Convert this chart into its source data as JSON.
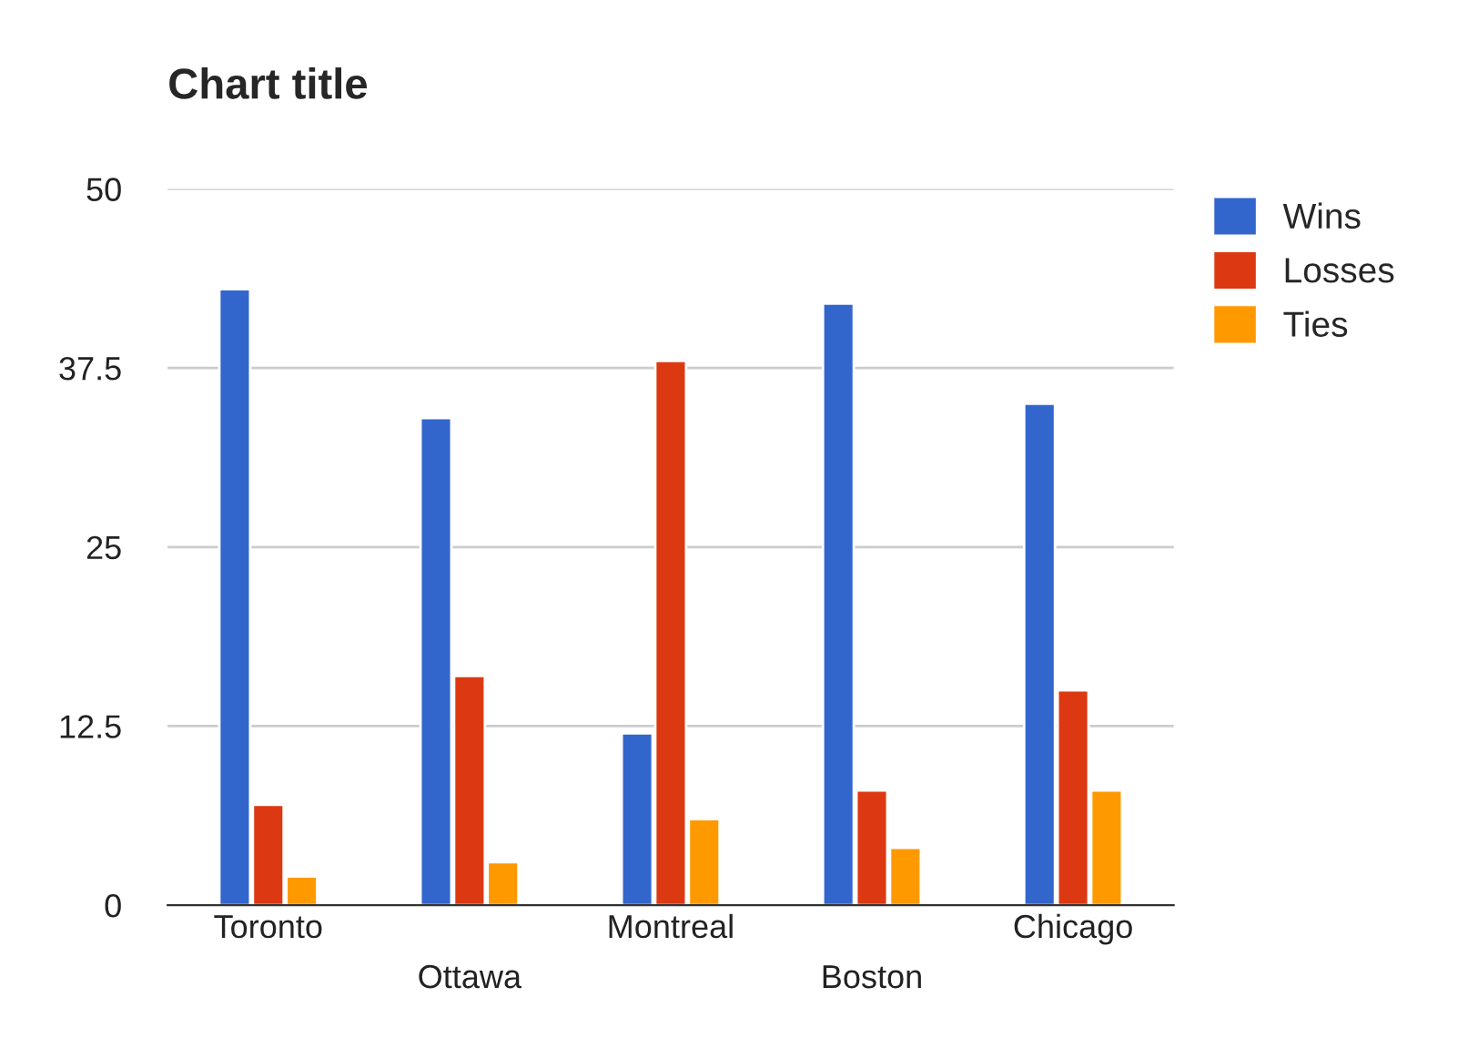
{
  "chart_data": {
    "type": "bar",
    "title": "Chart title",
    "categories": [
      "Toronto",
      "Ottawa",
      "Montreal",
      "Boston",
      "Chicago"
    ],
    "series": [
      {
        "name": "Wins",
        "color": "#3366cc",
        "values": [
          43,
          34,
          12,
          42,
          35
        ]
      },
      {
        "name": "Losses",
        "color": "#dc3912",
        "values": [
          7,
          16,
          38,
          8,
          15
        ]
      },
      {
        "name": "Ties",
        "color": "#ff9900",
        "values": [
          2,
          3,
          6,
          4,
          8
        ]
      }
    ],
    "ylim": [
      0,
      50
    ],
    "yticks": [
      0,
      12.5,
      25,
      37.5,
      50
    ],
    "grid": "y",
    "legend": "top right"
  }
}
